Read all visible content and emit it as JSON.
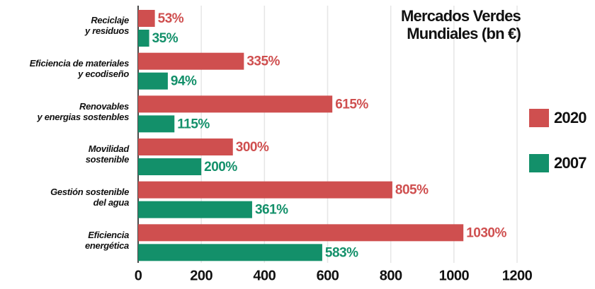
{
  "chart_data": {
    "type": "hbar",
    "title": "Mercados Verdes\nMundiales (bn €)",
    "categories": [
      "Reciclaje\ny residuos",
      "Eficiencia de materiales\ny ecodiseño",
      "Renovables\ny energias sostenbles",
      "Movilidad\nsostenible",
      "Gestión sostenible\ndel agua",
      "Eficiencia\nenergética"
    ],
    "series": [
      {
        "name": "2020",
        "color": "#cf4f4f",
        "values": [
          53,
          335,
          615,
          300,
          805,
          1030
        ],
        "value_labels": [
          "53%",
          "335%",
          "615%",
          "300%",
          "805%",
          "1030%"
        ]
      },
      {
        "name": "2007",
        "color": "#13906a",
        "values": [
          35,
          94,
          115,
          200,
          361,
          583
        ],
        "value_labels": [
          "35%",
          "94%",
          "115%",
          "200%",
          "361%",
          "583%"
        ]
      }
    ],
    "xlim": [
      0,
      1200
    ],
    "xticks": [
      0,
      200,
      400,
      600,
      800,
      1000,
      1200
    ],
    "grid": true,
    "legend": "right"
  }
}
